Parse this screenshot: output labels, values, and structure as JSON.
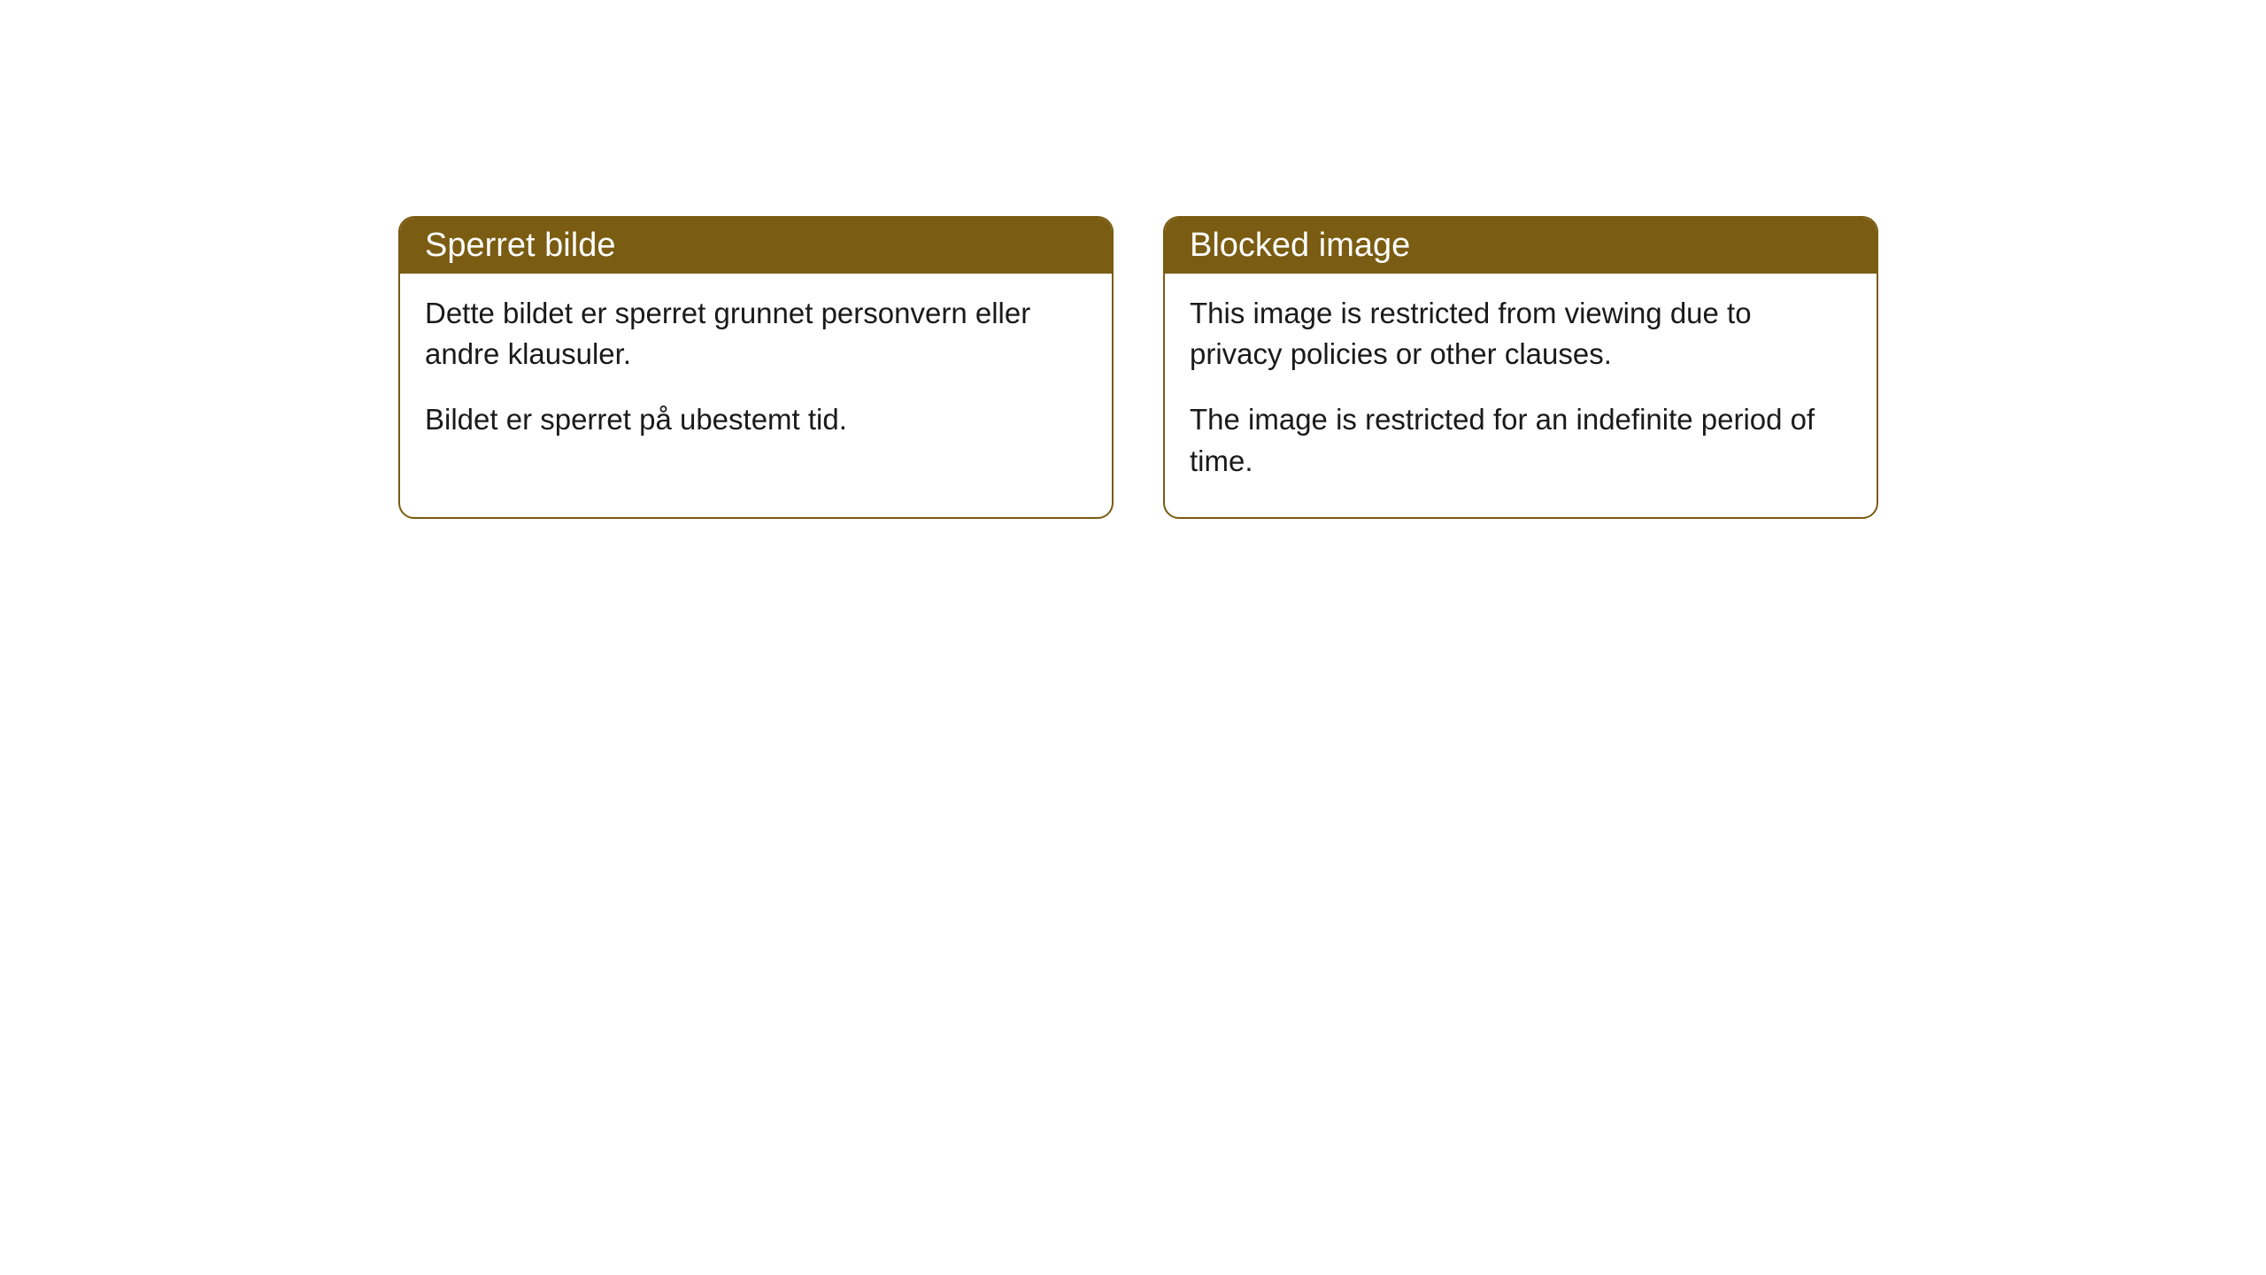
{
  "cards": [
    {
      "title": "Sperret bilde",
      "paragraph1": "Dette bildet er sperret grunnet personvern eller andre klausuler.",
      "paragraph2": "Bildet er sperret på ubestemt tid."
    },
    {
      "title": "Blocked image",
      "paragraph1": "This image is restricted from viewing due to privacy policies or other clauses.",
      "paragraph2": "The image is restricted for an indefinite period of time."
    }
  ],
  "styling": {
    "header_background": "#7a5c12",
    "header_text_color": "#ffffff",
    "border_color": "#7a5c12",
    "body_text_color": "#1a1a1a",
    "card_background": "#ffffff",
    "page_background": "#ffffff",
    "border_radius": 18,
    "header_font_size": 38,
    "body_font_size": 33
  }
}
